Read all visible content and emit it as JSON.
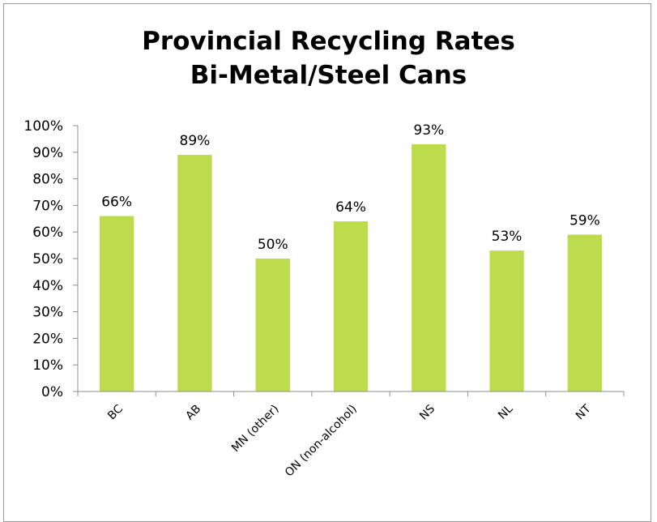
{
  "chart_data": {
    "type": "bar",
    "title_lines": [
      "Provincial Recycling Rates",
      "Bi-Metal/Steel Cans"
    ],
    "categories": [
      "BC",
      "AB",
      "MN (other)",
      "ON (non-alcohol)",
      "NS",
      "NL",
      "NT"
    ],
    "values": [
      66,
      89,
      50,
      64,
      93,
      53,
      59
    ],
    "data_labels": [
      "66%",
      "89%",
      "50%",
      "64%",
      "93%",
      "53%",
      "59%"
    ],
    "ylim": [
      0,
      100
    ],
    "yticks": [
      "0%",
      "10%",
      "20%",
      "30%",
      "40%",
      "50%",
      "60%",
      "70%",
      "80%",
      "90%",
      "100%"
    ],
    "grid": false,
    "legend": "none",
    "bar_color": "#bcdb4d"
  }
}
